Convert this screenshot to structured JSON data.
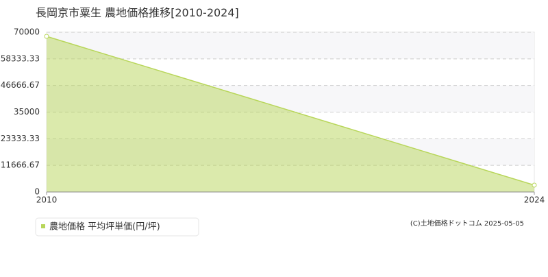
{
  "chart_data": {
    "type": "area",
    "title": "長岡京市粟生 農地価格推移[2010-2024]",
    "x": [
      2010,
      2024
    ],
    "xlim": [
      2010,
      2024
    ],
    "xticks": [
      2010,
      2024
    ],
    "series": [
      {
        "name": "農地価格 平均坪単価(円/坪)",
        "color": "#b8d65a",
        "values": [
          68200,
          3000
        ]
      }
    ],
    "ylim": [
      0,
      70000
    ],
    "yticks": [
      0,
      11666.67,
      23333.33,
      35000,
      46666.67,
      58333.33,
      70000
    ],
    "grid": true,
    "legend": "bottom-left",
    "copyright": "(C)土地価格ドットコム 2025-05-05"
  }
}
